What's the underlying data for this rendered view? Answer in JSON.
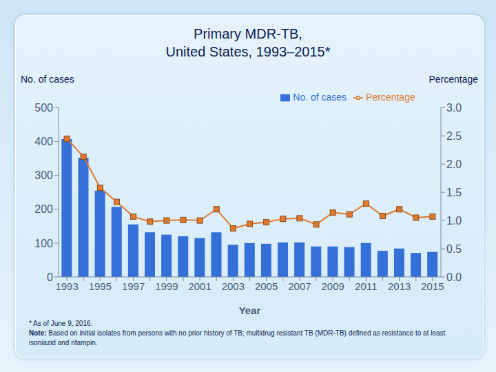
{
  "chart_data": {
    "type": "bar",
    "title": [
      "Primary MDR-TB,",
      "United States, 1993–2015*"
    ],
    "x_label": "Year",
    "y_label": "No. of cases",
    "y2_label": "Percentage",
    "categories": [
      "1993",
      null,
      "1995",
      null,
      "1997",
      null,
      "1999",
      null,
      "2001",
      null,
      "2003",
      null,
      "2005",
      null,
      "2007",
      null,
      "2009",
      null,
      "2011",
      null,
      "2013",
      null,
      "2015"
    ],
    "series": [
      {
        "name": "No. of cases",
        "type": "bar",
        "color": "#3470d8",
        "values": [
          407,
          352,
          255,
          207,
          155,
          132,
          125,
          120,
          115,
          132,
          95,
          100,
          98,
          102,
          102,
          90,
          90,
          88,
          100,
          77,
          84,
          71,
          74
        ]
      },
      {
        "name": "Percentage",
        "type": "line",
        "axis": "y2",
        "color": "#e07a2e",
        "marker": "square",
        "values": [
          2.45,
          2.13,
          1.58,
          1.33,
          1.07,
          0.98,
          1.0,
          1.01,
          1.0,
          1.2,
          0.86,
          0.94,
          0.97,
          1.03,
          1.04,
          0.93,
          1.14,
          1.11,
          1.3,
          1.08,
          1.2,
          1.05,
          1.07
        ]
      }
    ],
    "ylim": [
      0,
      500
    ],
    "yticks": [
      0,
      100,
      200,
      300,
      400,
      500
    ],
    "y2lim": [
      0,
      3
    ],
    "y2ticks": [
      {
        "value": 0,
        "label": "0.0"
      },
      0.5,
      {
        "value": 1,
        "label": "1.0"
      },
      1.5,
      {
        "value": 2,
        "label": "2.0"
      },
      2.5,
      {
        "value": 3,
        "label": "3.0"
      }
    ],
    "grid": false,
    "legend": "top",
    "notes": [
      "* As of June 9, 2016.",
      "Note: Based on initial isolates from persons with no prior history of TB; multidrug resistant TB (MDR-TB) defined as resistance to at least isoniazid and rifampin."
    ]
  }
}
